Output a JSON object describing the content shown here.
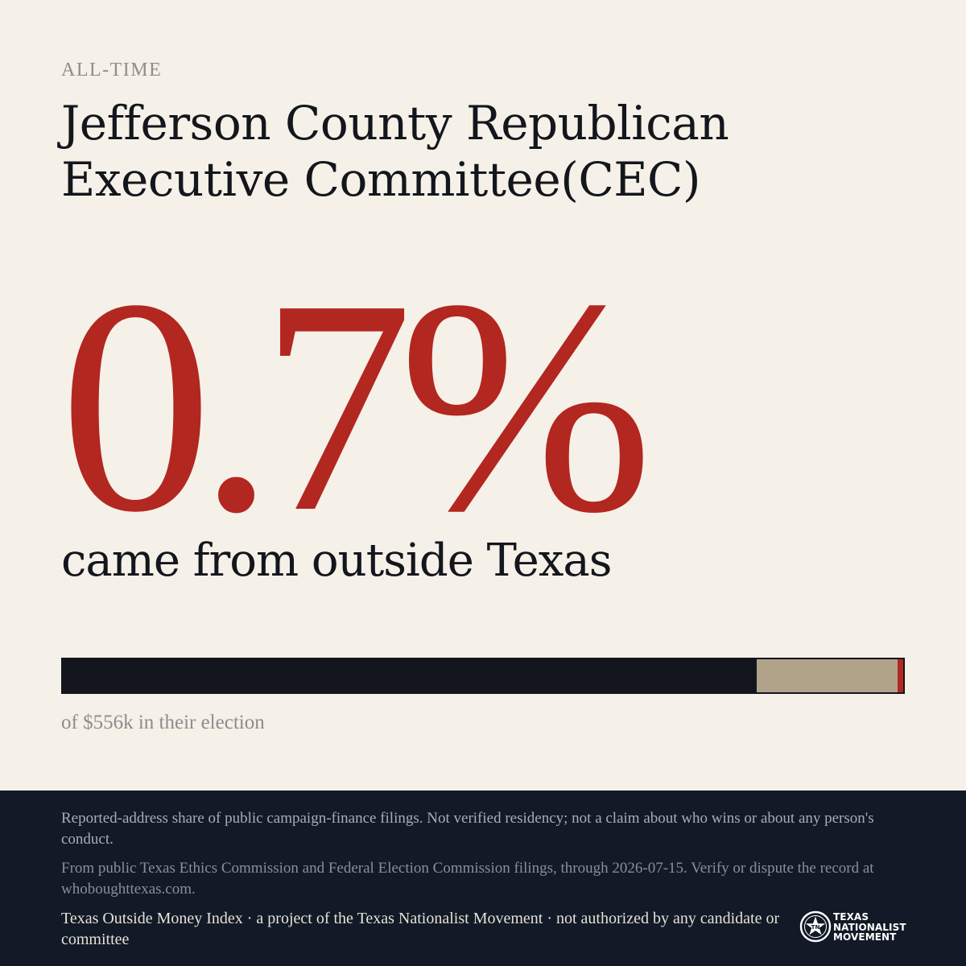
{
  "eyebrow": "ALL-TIME",
  "committee_name": "Jefferson County Republican Executive Committee(CEC)",
  "headline_value": "0.7%",
  "headline_caption": "came from outside Texas",
  "share_bar": {
    "in_state_fraction": 0.826,
    "other_fraction": 0.167,
    "outside_texas_fraction": 0.007,
    "colors": {
      "in_state": "#13161c",
      "other": "#b0a38a",
      "outside_texas": "#b22720"
    }
  },
  "total_caption": "of $556k in their election",
  "footer": {
    "disclaimer": "Reported-address share of public campaign-finance filings. Not verified residency; not a claim about who wins or about any person's conduct.",
    "source": "From public Texas Ethics Commission and Federal Election Commission filings, through 2026-07-15. Verify or dispute the record at whoboughttexas.com.",
    "project": "Texas Outside Money Index · a project of the Texas Nationalist Movement · not authorized by any candidate or committee",
    "logo": {
      "line1": "TEXAS",
      "line2": "NATIONALIST",
      "line3": "MOVEMENT",
      "icon": "star-seal-icon"
    }
  },
  "colors": {
    "background": "#f5f0e8",
    "accent_red": "#b22720",
    "ink": "#13161c",
    "footer_bg": "#111a26"
  }
}
